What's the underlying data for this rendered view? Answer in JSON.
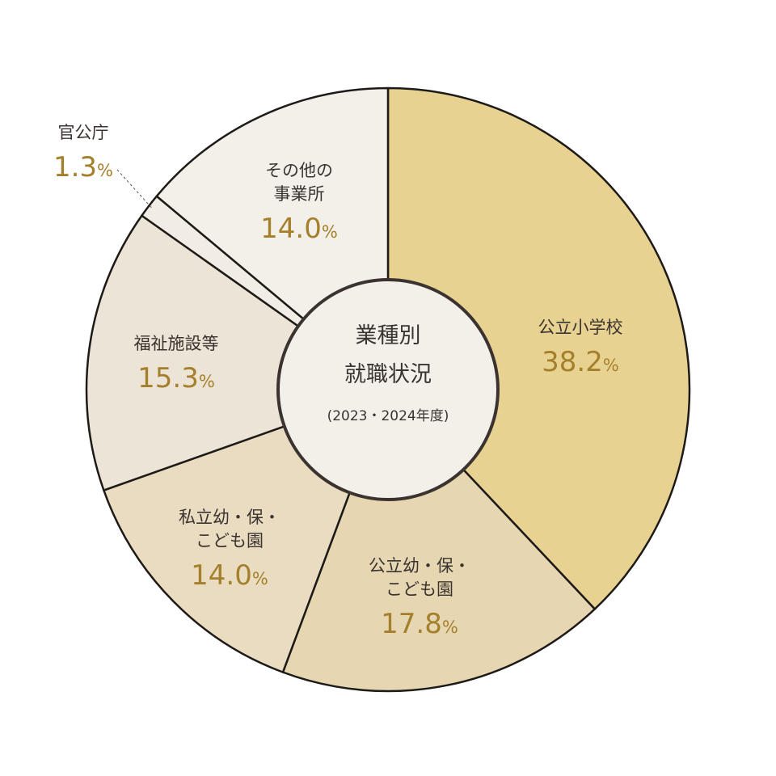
{
  "chart_data": {
    "type": "pie",
    "center": {
      "title_line1": "業種別",
      "title_line2": "就職状況",
      "subtitle": "(2023・2024年度)"
    },
    "unit": "%",
    "slices": [
      {
        "id": "public-elementary",
        "label_lines": [
          "公立小学校"
        ],
        "value": 38.2,
        "value_text": "38.2",
        "color": "#e8d291"
      },
      {
        "id": "public-kinder",
        "label_lines": [
          "公立幼・保・",
          "こども園"
        ],
        "value": 17.8,
        "value_text": "17.8",
        "color": "#e6d7b2"
      },
      {
        "id": "private-kinder",
        "label_lines": [
          "私立幼・保・",
          "こども園"
        ],
        "value": 14.0,
        "value_text": "14.0",
        "color": "#e9dcc1"
      },
      {
        "id": "welfare",
        "label_lines": [
          "福祉施設等"
        ],
        "value": 15.3,
        "value_text": "15.3",
        "color": "#ece4d6"
      },
      {
        "id": "government",
        "label_lines": [
          "官公庁"
        ],
        "value": 1.3,
        "value_text": "1.3",
        "color": "#f1ede5"
      },
      {
        "id": "other",
        "label_lines": [
          "その他の",
          "事業所"
        ],
        "value": 14.0,
        "value_text": "14.0",
        "color": "#f3f0ea"
      }
    ],
    "colors": {
      "stroke": "#1d1a18",
      "center_fill": "#f3f0ea",
      "center_stroke": "#3a3330",
      "label_text": "#3a3330",
      "value_text": "#a5802c"
    }
  }
}
